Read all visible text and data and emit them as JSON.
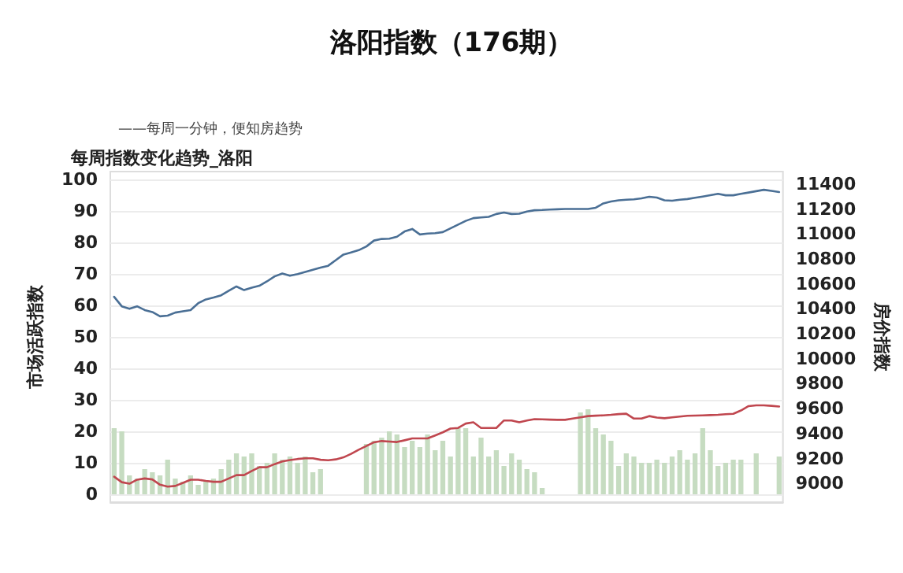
{
  "chart_data": {
    "type": "bar",
    "title": "洛阳指数（176期）",
    "subtitle": "——每周一分钟，便知房趋势",
    "annotations": [
      "每周指数变化趋势_洛阳"
    ],
    "ylabel": "市场活跃指数",
    "y2label": "房价指数",
    "categories": [
      null,
      null,
      null,
      null,
      null,
      null,
      null,
      null,
      null,
      null,
      null,
      null,
      null,
      null,
      null,
      null,
      null,
      null,
      null,
      null,
      null,
      null,
      null,
      null,
      null,
      null,
      null,
      null,
      null,
      null,
      null,
      null,
      null,
      null,
      null,
      null,
      null,
      null,
      null,
      null,
      null,
      null,
      null,
      null,
      null,
      null,
      null,
      null,
      null,
      null,
      null,
      null,
      null,
      null,
      null,
      null,
      null,
      null,
      null,
      null,
      null,
      null,
      null,
      null,
      null,
      null,
      null,
      null,
      null,
      null,
      null,
      null,
      null,
      null,
      null,
      null,
      null,
      null,
      null,
      null,
      null,
      null,
      null,
      null,
      null,
      null,
      null,
      null
    ],
    "series": [
      {
        "color": "#c6dcc1",
        "values": [
          21,
          20,
          6,
          5,
          8,
          7,
          6,
          11,
          5,
          4,
          6,
          3,
          4,
          5,
          8,
          11,
          13,
          12,
          13,
          9,
          10,
          13,
          11,
          12,
          10,
          12,
          7,
          8,
          null,
          null,
          null,
          null,
          null,
          16,
          17,
          18,
          20,
          19,
          15,
          17,
          15,
          19,
          14,
          17,
          12,
          21,
          21,
          12,
          18,
          12,
          14,
          9,
          13,
          11,
          8,
          7,
          2,
          null,
          null,
          null,
          null,
          26,
          27,
          21,
          19,
          17,
          9,
          13,
          12,
          10,
          10,
          11,
          10,
          12,
          14,
          11,
          13,
          21,
          14,
          9,
          10,
          11,
          11,
          null,
          13,
          null,
          null,
          12
        ]
      },
      {
        "type": "line",
        "axis": "y2",
        "color": "#4a6f95",
        "values": [
          10496,
          10420,
          10400,
          10420,
          10390,
          10374,
          10340,
          10345,
          10370,
          10380,
          10390,
          10445,
          10475,
          10490,
          10508,
          10545,
          10579,
          10550,
          10570,
          10585,
          10620,
          10660,
          10683,
          10665,
          10678,
          10695,
          10713,
          10730,
          10745,
          10790,
          10835,
          10852,
          10870,
          10900,
          10947,
          10960,
          10962,
          10978,
          11020,
          11040,
          10996,
          11003,
          11006,
          11015,
          11045,
          11075,
          11105,
          11127,
          11132,
          11137,
          11160,
          11172,
          11160,
          11162,
          11180,
          11190,
          11192,
          11196,
          11198,
          11200,
          11200,
          11200,
          11200,
          11210,
          11245,
          11260,
          11270,
          11274,
          11278,
          11285,
          11298,
          11292,
          11270,
          11267,
          11274,
          11280,
          11290,
          11300,
          11311,
          11322,
          11310,
          11310,
          11322,
          11332,
          11343,
          11354,
          11345,
          11336
        ]
      },
      {
        "type": "line",
        "axis": "y2",
        "color": "#c0474f",
        "values": [
          9054,
          9010,
          8998,
          9030,
          9040,
          9032,
          8990,
          8975,
          8980,
          9005,
          9030,
          9030,
          9020,
          9013,
          9013,
          9040,
          9067,
          9067,
          9100,
          9130,
          9130,
          9155,
          9176,
          9187,
          9196,
          9202,
          9202,
          9190,
          9186,
          9193,
          9209,
          9237,
          9270,
          9300,
          9330,
          9340,
          9336,
          9332,
          9346,
          9361,
          9361,
          9361,
          9385,
          9410,
          9440,
          9445,
          9480,
          9490,
          9445,
          9445,
          9445,
          9505,
          9505,
          9490,
          9505,
          9516,
          9514,
          9512,
          9510,
          9510,
          9520,
          9530,
          9540,
          9543,
          9546,
          9550,
          9556,
          9559,
          9520,
          9520,
          9540,
          9528,
          9523,
          9530,
          9536,
          9542,
          9544,
          9546,
          9548,
          9550,
          9555,
          9558,
          9585,
          9620,
          9626,
          9626,
          9622,
          9617
        ]
      }
    ],
    "ylim": [
      -2.5,
      102.5
    ],
    "yticks": [
      0,
      10,
      20,
      30,
      40,
      50,
      60,
      70,
      80,
      90,
      100
    ],
    "y2lim": [
      8850,
      11500
    ],
    "y2ticks": [
      9000,
      9200,
      9400,
      9600,
      9800,
      10000,
      10200,
      10400,
      10600,
      10800,
      11000,
      11200,
      11400
    ],
    "grid": "y",
    "line_style": "solid",
    "tick_labels": "y"
  }
}
